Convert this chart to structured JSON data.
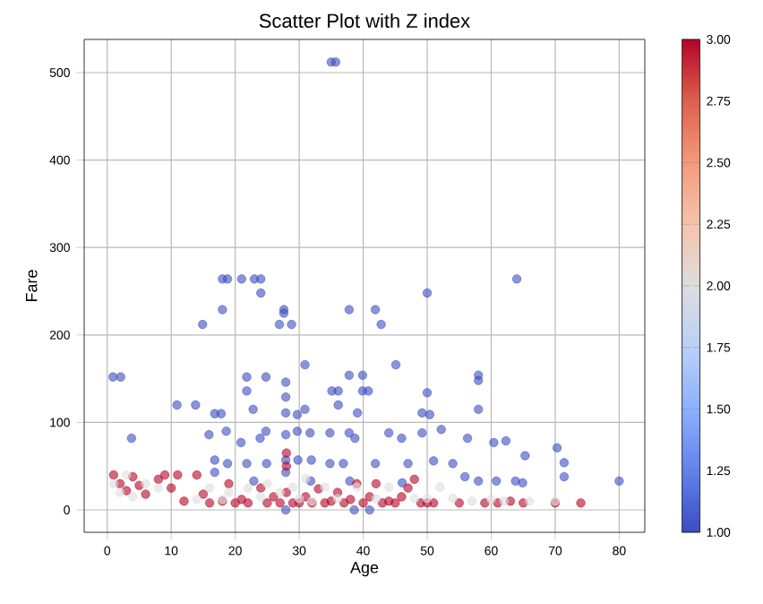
{
  "chart_data": {
    "type": "scatter",
    "title": "Scatter Plot with Z index",
    "xlabel": "Age",
    "ylabel": "Fare",
    "clabel": null,
    "x": [
      35,
      35.7,
      18,
      18.8,
      21,
      23,
      24,
      64,
      24,
      50,
      18,
      14.9,
      27.6,
      27.6,
      26.9,
      28.8,
      37.8,
      41.9,
      42.8,
      45.1,
      30.9,
      0.9,
      2.1,
      21.8,
      24.8,
      27.9,
      27.9,
      21.8,
      37.8,
      39.9,
      35.1,
      36.1,
      39.9,
      40.8,
      50,
      58,
      58,
      58,
      10.9,
      13.8,
      16.8,
      17.8,
      22.8,
      27.9,
      29.7,
      30.9,
      36.1,
      39.1,
      49.2,
      50.4,
      3.8,
      18.6,
      15.9,
      20.9,
      23.9,
      24.8,
      27.9,
      29.7,
      31.7,
      34.8,
      37.8,
      38.7,
      44,
      46,
      49.2,
      52.2,
      56.3,
      60.4,
      62.3,
      70.3,
      65.3,
      71.4,
      71.4,
      80,
      18.8,
      21.8,
      24.9,
      27.9,
      29.8,
      31.9,
      34.8,
      36.9,
      41.9,
      47,
      51,
      54,
      55.9,
      58,
      60.8,
      63.8,
      64.9,
      46.1,
      37.9,
      27.9,
      31.8,
      22.9,
      16.8,
      16.8,
      38.6,
      41,
      27.9,
      1,
      2,
      3,
      4,
      5,
      6,
      8,
      9,
      10,
      11,
      12,
      14,
      15,
      16,
      18,
      19,
      20,
      21,
      22,
      24,
      25,
      26,
      27,
      28,
      28,
      28,
      29,
      30,
      31,
      32,
      33,
      34,
      35,
      36,
      37,
      38,
      39,
      40,
      41,
      42,
      43,
      44,
      45,
      46,
      47,
      48,
      49,
      50,
      51,
      55,
      59,
      61,
      63,
      65,
      70,
      74,
      1,
      2,
      3,
      4,
      6,
      8,
      14,
      16,
      18,
      19,
      22,
      24,
      25,
      27,
      29,
      30,
      31,
      32,
      34,
      36,
      39,
      42,
      44,
      48,
      50,
      52,
      54,
      57,
      60,
      62,
      66,
      70
    ],
    "values": [
      512,
      512,
      264,
      264,
      264,
      264,
      264,
      264,
      248,
      248,
      229,
      212,
      229,
      225,
      212,
      212,
      229,
      229,
      212,
      166,
      166,
      152,
      152,
      152,
      152,
      146,
      129,
      136,
      154,
      154,
      136,
      136,
      136,
      136,
      134,
      154,
      148,
      115,
      120,
      120,
      110,
      110,
      115,
      111,
      109,
      115,
      120,
      111,
      111,
      109,
      82,
      90,
      86,
      77,
      82,
      90,
      86,
      90,
      88,
      88,
      88,
      82,
      88,
      82,
      88,
      92,
      82,
      77,
      79,
      71,
      62,
      54,
      38,
      33,
      53,
      53,
      53,
      57,
      57,
      57,
      53,
      53,
      53,
      53,
      56,
      53,
      38,
      33,
      33,
      33,
      31,
      31,
      33,
      43,
      33,
      33,
      57,
      43,
      0,
      0,
      0,
      40,
      30,
      22,
      38,
      28,
      18,
      35,
      40,
      25,
      40,
      10,
      40,
      18,
      8,
      10,
      30,
      8,
      12,
      8,
      25,
      8,
      15,
      8,
      65,
      50,
      20,
      8,
      8,
      15,
      8,
      24,
      8,
      10,
      20,
      8,
      12,
      30,
      8,
      15,
      30,
      8,
      10,
      8,
      15,
      25,
      35,
      8,
      8,
      8,
      8,
      8,
      8,
      10,
      8,
      8,
      8,
      30,
      20,
      40,
      15,
      30,
      25,
      12,
      25,
      12,
      20,
      25,
      15,
      30,
      20,
      26,
      13,
      36,
      10,
      26,
      13,
      26,
      13,
      26,
      13,
      13,
      26,
      13,
      10,
      12,
      10,
      10,
      10
    ],
    "cvalues": [
      1,
      1,
      1,
      1,
      1,
      1,
      1,
      1,
      1,
      1,
      1,
      1,
      1,
      1,
      1,
      1,
      1,
      1,
      1,
      1,
      1,
      1,
      1,
      1,
      1,
      1,
      1,
      1,
      1,
      1,
      1,
      1,
      1,
      1,
      1,
      1,
      1,
      1,
      1,
      1,
      1,
      1,
      1,
      1,
      1,
      1,
      1,
      1,
      1,
      1,
      1,
      1,
      1,
      1,
      1,
      1,
      1,
      1,
      1,
      1,
      1,
      1,
      1,
      1,
      1,
      1,
      1,
      1,
      1,
      1,
      1,
      1,
      1,
      1,
      1,
      1,
      1,
      1,
      1,
      1,
      1,
      1,
      1,
      1,
      1,
      1,
      1,
      1,
      1,
      1,
      1,
      1,
      1,
      1,
      1,
      1,
      1,
      1,
      1,
      1,
      1,
      3,
      3,
      3,
      3,
      3,
      3,
      3,
      3,
      3,
      3,
      3,
      3,
      3,
      3,
      3,
      3,
      3,
      3,
      3,
      3,
      3,
      3,
      3,
      3,
      3,
      3,
      3,
      3,
      3,
      3,
      3,
      3,
      3,
      3,
      3,
      3,
      3,
      3,
      3,
      3,
      3,
      3,
      3,
      3,
      3,
      3,
      3,
      3,
      3,
      3,
      3,
      3,
      3,
      3,
      3,
      3,
      2,
      2,
      2,
      2,
      2,
      2,
      2,
      2,
      2,
      2,
      2,
      2,
      2,
      2,
      2,
      2,
      2,
      2,
      2,
      2,
      2,
      2,
      2,
      2,
      2,
      2,
      2,
      2,
      2,
      2,
      2,
      2
    ],
    "xlim": [
      -3.6,
      84
    ],
    "ylim": [
      -25.6,
      537.9
    ],
    "xticks": [
      0,
      10,
      20,
      30,
      40,
      50,
      60,
      70,
      80
    ],
    "yticks": [
      0,
      100,
      200,
      300,
      400,
      500
    ],
    "clim": [
      1,
      3
    ],
    "cticks": [
      {
        "value": 1,
        "label": "1.00"
      },
      {
        "value": 1.25,
        "label": "1.25"
      },
      {
        "value": 1.5,
        "label": "1.50"
      },
      {
        "value": 1.75,
        "label": "1.75"
      },
      {
        "value": 2,
        "label": "2.00"
      },
      {
        "value": 2.25,
        "label": "2.25"
      },
      {
        "value": 2.5,
        "label": "2.50"
      },
      {
        "value": 2.75,
        "label": "2.75"
      },
      {
        "value": 3,
        "label": "3.00"
      }
    ],
    "grid": true,
    "marker": "circle"
  }
}
